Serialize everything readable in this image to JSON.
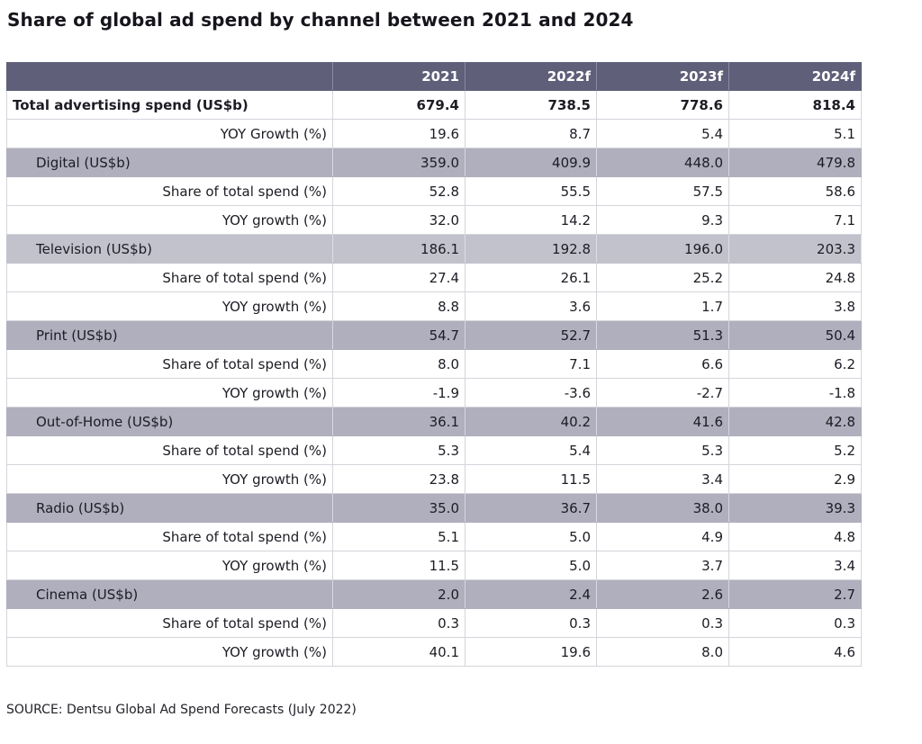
{
  "title": "Share of global ad spend by channel between 2021 and 2024",
  "source": "SOURCE: Dentsu Global Ad Spend Forecasts (July 2022)",
  "chart_data": {
    "type": "table",
    "title": "Share of global ad spend by channel between 2021 and 2024",
    "columns": [
      "",
      "2021",
      "2022f",
      "2023f",
      "2024f"
    ],
    "rows": [
      {
        "kind": "total",
        "label": "Total advertising spend (US$b)",
        "values": [
          "679.4",
          "738.5",
          "778.6",
          "818.4"
        ]
      },
      {
        "kind": "sub",
        "label": "YOY Growth (%)",
        "values": [
          "19.6",
          "8.7",
          "5.4",
          "5.1"
        ]
      },
      {
        "kind": "channel",
        "label": "Digital (US$b)",
        "values": [
          "359.0",
          "409.9",
          "448.0",
          "479.8"
        ]
      },
      {
        "kind": "sub",
        "label": "Share of total spend (%)",
        "values": [
          "52.8",
          "55.5",
          "57.5",
          "58.6"
        ]
      },
      {
        "kind": "sub",
        "label": "YOY growth (%)",
        "values": [
          "32.0",
          "14.2",
          "9.3",
          "7.1"
        ]
      },
      {
        "kind": "channel",
        "label": "Television (US$b)",
        "values": [
          "186.1",
          "192.8",
          "196.0",
          "203.3"
        ]
      },
      {
        "kind": "sub",
        "label": "Share of total spend (%)",
        "values": [
          "27.4",
          "26.1",
          "25.2",
          "24.8"
        ]
      },
      {
        "kind": "sub",
        "label": "YOY growth (%)",
        "values": [
          "8.8",
          "3.6",
          "1.7",
          "3.8"
        ]
      },
      {
        "kind": "channel",
        "label": "Print (US$b)",
        "values": [
          "54.7",
          "52.7",
          "51.3",
          "50.4"
        ]
      },
      {
        "kind": "sub",
        "label": "Share of total spend (%)",
        "values": [
          "8.0",
          "7.1",
          "6.6",
          "6.2"
        ]
      },
      {
        "kind": "sub",
        "label": "YOY growth (%)",
        "values": [
          "-1.9",
          "-3.6",
          "-2.7",
          "-1.8"
        ]
      },
      {
        "kind": "channel",
        "label": "Out-of-Home (US$b)",
        "values": [
          "36.1",
          "40.2",
          "41.6",
          "42.8"
        ]
      },
      {
        "kind": "sub",
        "label": "Share of total spend (%)",
        "values": [
          "5.3",
          "5.4",
          "5.3",
          "5.2"
        ]
      },
      {
        "kind": "sub",
        "label": "YOY growth (%)",
        "values": [
          "23.8",
          "11.5",
          "3.4",
          "2.9"
        ]
      },
      {
        "kind": "channel",
        "label": "Radio (US$b)",
        "values": [
          "35.0",
          "36.7",
          "38.0",
          "39.3"
        ]
      },
      {
        "kind": "sub",
        "label": "Share of total spend (%)",
        "values": [
          "5.1",
          "5.0",
          "4.9",
          "4.8"
        ]
      },
      {
        "kind": "sub",
        "label": "YOY growth (%)",
        "values": [
          "11.5",
          "5.0",
          "3.7",
          "3.4"
        ]
      },
      {
        "kind": "channel",
        "label": "Cinema (US$b)",
        "values": [
          "2.0",
          "2.4",
          "2.6",
          "2.7"
        ]
      },
      {
        "kind": "sub",
        "label": "Share of total spend (%)",
        "values": [
          "0.3",
          "0.3",
          "0.3",
          "0.3"
        ]
      },
      {
        "kind": "sub",
        "label": "YOY growth (%)",
        "values": [
          "40.1",
          "19.6",
          "8.0",
          "4.6"
        ]
      }
    ]
  },
  "colors": {
    "header_bg": "#5f5f7a",
    "channel_bg": "#afafbe",
    "channel_bg_light": "#c2c2cd",
    "grid": "#d4d4db"
  }
}
